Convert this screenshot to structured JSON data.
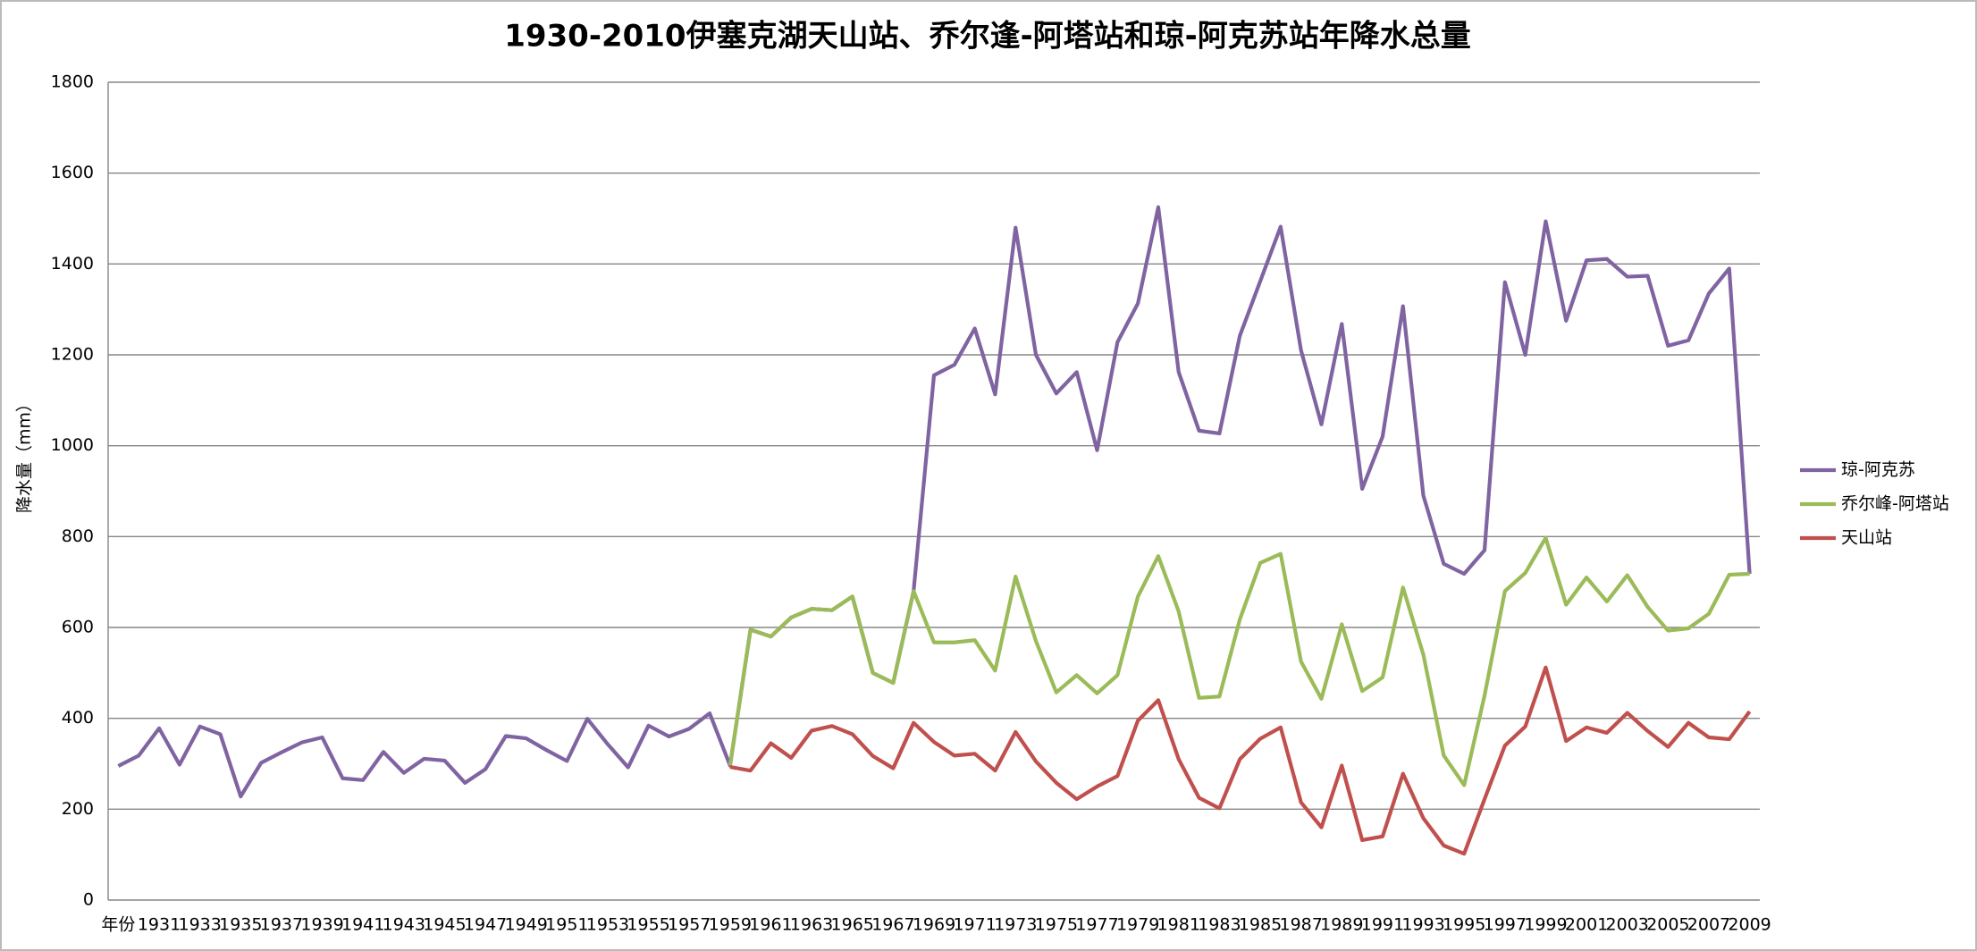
{
  "chart_data": {
    "type": "line",
    "title": "1930-2010伊塞克湖天山站、乔尔逢-阿塔站和琼-阿克苏站年降水总量",
    "y_label": "降水量（mm）",
    "categories": [
      "年份",
      null,
      "1931",
      null,
      "1933",
      null,
      "1935",
      null,
      "1937",
      null,
      "1939",
      null,
      "1941",
      null,
      "1943",
      null,
      "1945",
      null,
      "1947",
      null,
      "1949",
      null,
      "1951",
      null,
      "1953",
      null,
      "1955",
      null,
      "1957",
      null,
      "1959",
      null,
      "1961",
      null,
      "1963",
      null,
      "1965",
      null,
      "1967",
      null,
      "1969",
      null,
      "1971",
      null,
      "1973",
      null,
      "1975",
      null,
      "1977",
      null,
      "1979",
      null,
      "1981",
      null,
      "1983",
      null,
      "1985",
      null,
      "1987",
      null,
      "1989",
      null,
      "1991",
      null,
      "1993",
      null,
      "1995",
      null,
      "1997",
      null,
      "1999",
      null,
      "2001",
      null,
      "2003",
      null,
      "2005",
      null,
      "2007",
      null,
      "2009"
    ],
    "series": [
      {
        "name": "琼-阿克苏",
        "color": "#8064a2",
        "values": [
          295,
          318,
          378,
          298,
          382,
          365,
          228,
          302,
          325,
          347,
          358,
          268,
          264,
          326,
          280,
          311,
          307,
          258,
          288,
          361,
          356,
          330,
          306,
          399,
          343,
          292,
          384,
          360,
          377,
          411,
          296,
          595,
          580,
          622,
          641,
          638,
          668,
          500,
          478,
          680,
          1155,
          1178,
          1258,
          1113,
          1480,
          1200,
          1115,
          1162,
          990,
          1228,
          1313,
          1525,
          1162,
          1033,
          1027,
          1242,
          1362,
          1482,
          1210,
          1047,
          1268,
          905,
          1020,
          1307,
          890,
          740,
          718,
          770,
          1360,
          1200,
          1494,
          1275,
          1408,
          1411,
          1372,
          1374,
          1220,
          1232,
          1335,
          1390,
          718
        ]
      },
      {
        "name": "乔尔峰-阿塔站",
        "color": "#9bbb59",
        "values": [
          null,
          null,
          null,
          null,
          null,
          null,
          null,
          null,
          null,
          null,
          null,
          null,
          null,
          null,
          null,
          null,
          null,
          null,
          null,
          null,
          null,
          null,
          null,
          null,
          null,
          null,
          null,
          null,
          null,
          null,
          296,
          595,
          580,
          622,
          641,
          638,
          668,
          500,
          478,
          680,
          567,
          567,
          572,
          505,
          712,
          570,
          457,
          495,
          455,
          495,
          668,
          757,
          635,
          445,
          448,
          618,
          742,
          762,
          525,
          443,
          607,
          460,
          490,
          688,
          540,
          318,
          253,
          450,
          680,
          720,
          797,
          650,
          710,
          657,
          715,
          645,
          593,
          598,
          630,
          716,
          718
        ]
      },
      {
        "name": "天山站",
        "color": "#c0504d",
        "values": [
          null,
          null,
          null,
          null,
          null,
          null,
          null,
          null,
          null,
          null,
          null,
          null,
          null,
          null,
          null,
          null,
          null,
          null,
          null,
          null,
          null,
          null,
          null,
          null,
          null,
          null,
          null,
          null,
          null,
          null,
          293,
          285,
          345,
          313,
          373,
          383,
          365,
          317,
          290,
          390,
          348,
          318,
          322,
          285,
          370,
          305,
          258,
          222,
          250,
          273,
          395,
          440,
          310,
          225,
          202,
          310,
          355,
          380,
          215,
          160,
          296,
          132,
          140,
          278,
          180,
          120,
          102,
          222,
          340,
          382,
          512,
          350,
          380,
          368,
          412,
          372,
          337,
          390,
          358,
          354,
          415
        ]
      }
    ],
    "ylim": [
      0,
      1800
    ],
    "yticks": [
      0,
      200,
      400,
      600,
      800,
      1000,
      1200,
      1400,
      1600,
      1800
    ],
    "grid": true,
    "legend": "right"
  }
}
